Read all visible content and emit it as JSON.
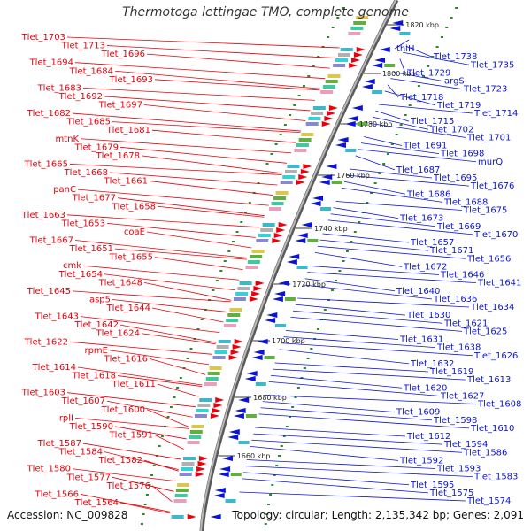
{
  "title": "Thermotoga lettingae TMO, complete genome",
  "accession": "Accession: NC_009828",
  "topology": "Topology: circular; Length: 2,135,342 bp; Genes: 2,091",
  "colors": {
    "forward": "#e8000b",
    "reverse": "#0a14d6",
    "backbone": "#808080",
    "ticks": "#2a8a2a"
  },
  "kbp_labels": [
    "1820 kbp",
    "1800 kbp",
    "1780 kbp",
    "1760 kbp",
    "1740 kbp",
    "1720 kbp",
    "1700 kbp",
    "1680 kbp",
    "1660 kbp"
  ],
  "forward_labels": [
    "Tlet_1703",
    "Tlet_1713",
    "Tlet_1696",
    "Tlet_1694",
    "Tlet_1684",
    "Tlet_1693",
    "Tlet_1683",
    "Tlet_1692",
    "Tlet_1697",
    "Tlet_1682",
    "Tlet_1685",
    "Tlet_1681",
    "mtnK",
    "Tlet_1679",
    "Tlet_1678",
    "Tlet_1665",
    "Tlet_1668",
    "Tlet_1661",
    "panC",
    "Tlet_1677",
    "Tlet_1658",
    "Tlet_1663",
    "Tlet_1653",
    "coaE",
    "Tlet_1667",
    "Tlet_1651",
    "Tlet_1655",
    "cmk",
    "Tlet_1654",
    "Tlet_1648",
    "Tlet_1645",
    "asp5",
    "Tlet_1644",
    "Tlet_1643",
    "Tlet_1642",
    "Tlet_1624",
    "Tlet_1622",
    "rpmE",
    "Tlet_1616",
    "Tlet_1614",
    "Tlet_1618",
    "Tlet_1611",
    "Tlet_1603",
    "Tlet_1607",
    "Tlet_1600",
    "rplI",
    "Tlet_1590",
    "Tlet_1591",
    "Tlet_1587",
    "Tlet_1584",
    "Tlet_1582",
    "Tlet_1580",
    "Tlet_1577",
    "Tlet_1576",
    "Tlet_1566",
    "Tlet_1564"
  ],
  "reverse_labels": [
    "thiH",
    "Tlet_1738",
    "Tlet_1735",
    "Tlet_1729",
    "argS",
    "Tlet_1723",
    "Tlet_1718",
    "Tlet_1719",
    "Tlet_1714",
    "Tlet_1715",
    "Tlet_1702",
    "Tlet_1701",
    "Tlet_1691",
    "Tlet_1698",
    "murQ",
    "Tlet_1687",
    "Tlet_1695",
    "Tlet_1676",
    "Tlet_1686",
    "Tlet_1688",
    "Tlet_1675",
    "Tlet_1673",
    "Tlet_1669",
    "Tlet_1670",
    "Tlet_1657",
    "Tlet_1671",
    "Tlet_1656",
    "Tlet_1672",
    "Tlet_1646",
    "Tlet_1641",
    "Tlet_1640",
    "Tlet_1636",
    "Tlet_1634",
    "Tlet_1630",
    "Tlet_1621",
    "Tlet_1625",
    "Tlet_1631",
    "Tlet_1638",
    "Tlet_1626",
    "Tlet_1632",
    "Tlet_1619",
    "Tlet_1613",
    "Tlet_1620",
    "Tlet_1627",
    "Tlet_1608",
    "Tlet_1609",
    "Tlet_1598",
    "Tlet_1610",
    "Tlet_1612",
    "Tlet_1594",
    "Tlet_1586",
    "Tlet_1592",
    "Tlet_1593",
    "Tlet_1583",
    "Tlet_1595",
    "Tlet_1575",
    "Tlet_1574"
  ]
}
